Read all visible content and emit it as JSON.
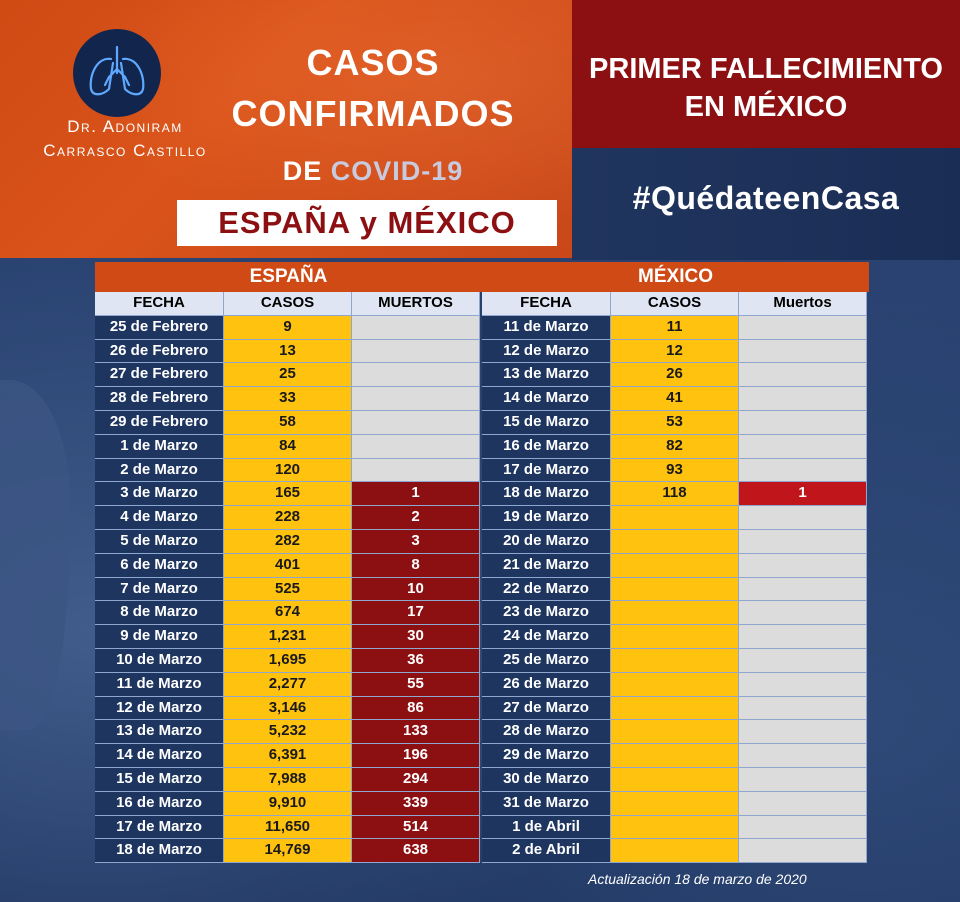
{
  "author": {
    "line1": "Dr. Adoniram",
    "line2": "Carrasco Castillo"
  },
  "title": {
    "line1": "CASOS",
    "line2": "CONFIRMADOS",
    "line3_prefix": "DE",
    "line3_virus": "COVID-19",
    "countries": "ESPAÑA y MÉXICO"
  },
  "banner": {
    "line1": "PRIMER FALLECIMIENTO",
    "line2": "EN MÉXICO"
  },
  "hashtag": "#QuédateenCasa",
  "spain": {
    "name": "ESPAÑA",
    "headers": [
      "FECHA",
      "CASOS",
      "MUERTOS"
    ],
    "rows": [
      {
        "date": "25 de  Febrero",
        "cases": "9",
        "deaths": ""
      },
      {
        "date": "26 de Febrero",
        "cases": "13",
        "deaths": ""
      },
      {
        "date": "27 de Febrero",
        "cases": "25",
        "deaths": ""
      },
      {
        "date": "28 de Febrero",
        "cases": "33",
        "deaths": ""
      },
      {
        "date": "29 de Febrero",
        "cases": "58",
        "deaths": ""
      },
      {
        "date": "1 de Marzo",
        "cases": "84",
        "deaths": ""
      },
      {
        "date": "2 de Marzo",
        "cases": "120",
        "deaths": ""
      },
      {
        "date": "3 de Marzo",
        "cases": "165",
        "deaths": "1"
      },
      {
        "date": "4 de Marzo",
        "cases": "228",
        "deaths": "2"
      },
      {
        "date": "5 de Marzo",
        "cases": "282",
        "deaths": "3"
      },
      {
        "date": "6 de Marzo",
        "cases": "401",
        "deaths": "8"
      },
      {
        "date": "7 de Marzo",
        "cases": "525",
        "deaths": "10"
      },
      {
        "date": "8 de Marzo",
        "cases": "674",
        "deaths": "17"
      },
      {
        "date": "9 de Marzo",
        "cases": "1,231",
        "deaths": "30"
      },
      {
        "date": "10 de Marzo",
        "cases": "1,695",
        "deaths": "36"
      },
      {
        "date": "11 de Marzo",
        "cases": "2,277",
        "deaths": "55"
      },
      {
        "date": "12 de Marzo",
        "cases": "3,146",
        "deaths": "86"
      },
      {
        "date": "13 de Marzo",
        "cases": "5,232",
        "deaths": "133"
      },
      {
        "date": "14 de Marzo",
        "cases": "6,391",
        "deaths": "196"
      },
      {
        "date": "15 de Marzo",
        "cases": "7,988",
        "deaths": "294"
      },
      {
        "date": "16 de Marzo",
        "cases": "9,910",
        "deaths": "339"
      },
      {
        "date": "17 de Marzo",
        "cases": "11,650",
        "deaths": "514"
      },
      {
        "date": "18 de Marzo",
        "cases": "14,769",
        "deaths": "638"
      }
    ]
  },
  "mexico": {
    "name": "MÉXICO",
    "headers": [
      "FECHA",
      "CASOS",
      "Muertos"
    ],
    "rows": [
      {
        "date": "11 de Marzo",
        "cases": "11",
        "deaths": ""
      },
      {
        "date": "12 de Marzo",
        "cases": "12",
        "deaths": ""
      },
      {
        "date": "13 de Marzo",
        "cases": "26",
        "deaths": ""
      },
      {
        "date": "14 de Marzo",
        "cases": "41",
        "deaths": ""
      },
      {
        "date": "15 de Marzo",
        "cases": "53",
        "deaths": ""
      },
      {
        "date": "16 de Marzo",
        "cases": "82",
        "deaths": ""
      },
      {
        "date": "17 de Marzo",
        "cases": "93",
        "deaths": ""
      },
      {
        "date": "18 de Marzo",
        "cases": "118",
        "deaths": "1"
      },
      {
        "date": "19 de Marzo",
        "cases": "",
        "deaths": ""
      },
      {
        "date": "20 de Marzo",
        "cases": "",
        "deaths": ""
      },
      {
        "date": "21 de Marzo",
        "cases": "",
        "deaths": ""
      },
      {
        "date": "22 de Marzo",
        "cases": "",
        "deaths": ""
      },
      {
        "date": "23 de Marzo",
        "cases": "",
        "deaths": ""
      },
      {
        "date": "24 de Marzo",
        "cases": "",
        "deaths": ""
      },
      {
        "date": "25 de Marzo",
        "cases": "",
        "deaths": ""
      },
      {
        "date": "26 de Marzo",
        "cases": "",
        "deaths": ""
      },
      {
        "date": "27 de Marzo",
        "cases": "",
        "deaths": ""
      },
      {
        "date": "28 de Marzo",
        "cases": "",
        "deaths": ""
      },
      {
        "date": "29 de Marzo",
        "cases": "",
        "deaths": ""
      },
      {
        "date": "30 de Marzo",
        "cases": "",
        "deaths": ""
      },
      {
        "date": "31 de Marzo",
        "cases": "",
        "deaths": ""
      },
      {
        "date": "1 de Abril",
        "cases": "",
        "deaths": ""
      },
      {
        "date": "2 de Abril",
        "cases": "",
        "deaths": ""
      }
    ]
  },
  "update_note": "Actualización 18 de marzo de 2020",
  "colors": {
    "orange": "#cf4a14",
    "dark_red": "#8c0f12",
    "navy": "#1e3560",
    "yellow": "#ffc20e",
    "gray": "#dcdcdc"
  },
  "icons": {
    "logo": "lungs-icon"
  }
}
